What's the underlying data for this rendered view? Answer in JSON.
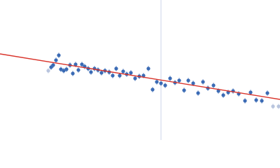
{
  "chart_data": {
    "type": "scatter",
    "xlim": [
      0,
      400
    ],
    "ylim": [
      0,
      200
    ],
    "vline": {
      "x": 230,
      "color": "#cdd6ea"
    },
    "fit": {
      "x": [
        0,
        400
      ],
      "values": [
        123,
        58
      ],
      "color": "#d9342b"
    },
    "series": [
      {
        "color": "#b9c5de",
        "x": [
          69,
          390,
          398
        ],
        "values": [
          99,
          48,
          48
        ]
      },
      {
        "color": "#3b6bb5",
        "x": [
          73,
          76,
          80,
          84,
          87,
          91,
          95,
          100,
          104,
          108,
          112,
          117,
          121,
          126,
          130,
          135,
          140,
          145,
          150,
          156,
          161,
          166,
          171,
          176,
          181,
          187,
          193,
          199,
          205,
          212,
          218,
          224,
          230,
          236,
          243,
          250,
          256,
          263,
          269,
          276,
          283,
          290,
          297,
          305,
          312,
          319,
          326,
          333,
          341,
          350,
          358,
          366,
          374,
          382
        ],
        "values": [
          104,
          107,
          114,
          121,
          101,
          99,
          101,
          107,
          95,
          108,
          100,
          108,
          105,
          102,
          97,
          102,
          100,
          96,
          99,
          97,
          92,
          102,
          92,
          98,
          94,
          96,
          88,
          91,
          92,
          102,
          72,
          83,
          81,
          78,
          88,
          82,
          85,
          71,
          85,
          81,
          67,
          83,
          74,
          78,
          70,
          64,
          68,
          70,
          66,
          56,
          68,
          57,
          56,
          67
        ]
      }
    ]
  }
}
